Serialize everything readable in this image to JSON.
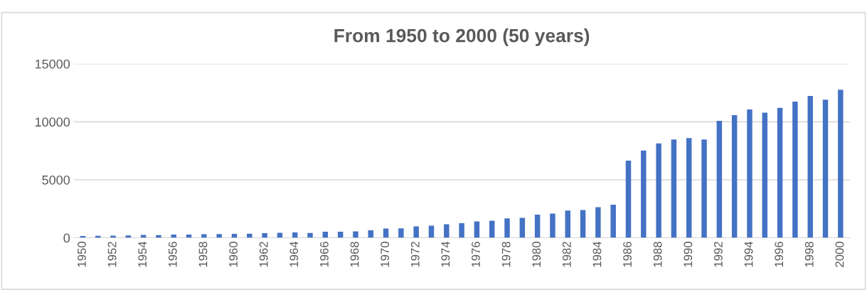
{
  "chart_data": {
    "type": "bar",
    "title": "From 1950 to 2000 (50 years)",
    "categories": [
      "1950",
      null,
      "1952",
      null,
      "1954",
      null,
      "1956",
      null,
      "1958",
      null,
      "1960",
      null,
      "1962",
      null,
      "1964",
      null,
      "1966",
      null,
      "1968",
      null,
      "1970",
      null,
      "1972",
      null,
      "1974",
      null,
      "1976",
      null,
      "1978",
      null,
      "1980",
      null,
      "1982",
      null,
      "1984",
      null,
      "1986",
      null,
      "1988",
      null,
      "1990",
      null,
      "1992",
      null,
      "1994",
      null,
      "1996",
      null,
      "1998",
      null,
      "2000"
    ],
    "values": [
      150,
      170,
      190,
      200,
      250,
      230,
      280,
      280,
      310,
      320,
      340,
      360,
      400,
      440,
      470,
      420,
      520,
      530,
      550,
      640,
      800,
      810,
      980,
      1050,
      1170,
      1260,
      1420,
      1480,
      1680,
      1720,
      2000,
      2080,
      2340,
      2400,
      2640,
      2850,
      6650,
      7520,
      8140,
      8470,
      8600,
      8470,
      10080,
      10580,
      11070,
      10790,
      11200,
      11740,
      12230,
      11900,
      12770
    ],
    "color": "#4472c4",
    "ylim": [
      0,
      15000
    ],
    "yticks": [
      0,
      5000,
      10000,
      15000
    ],
    "grid": "y",
    "legend": false
  }
}
